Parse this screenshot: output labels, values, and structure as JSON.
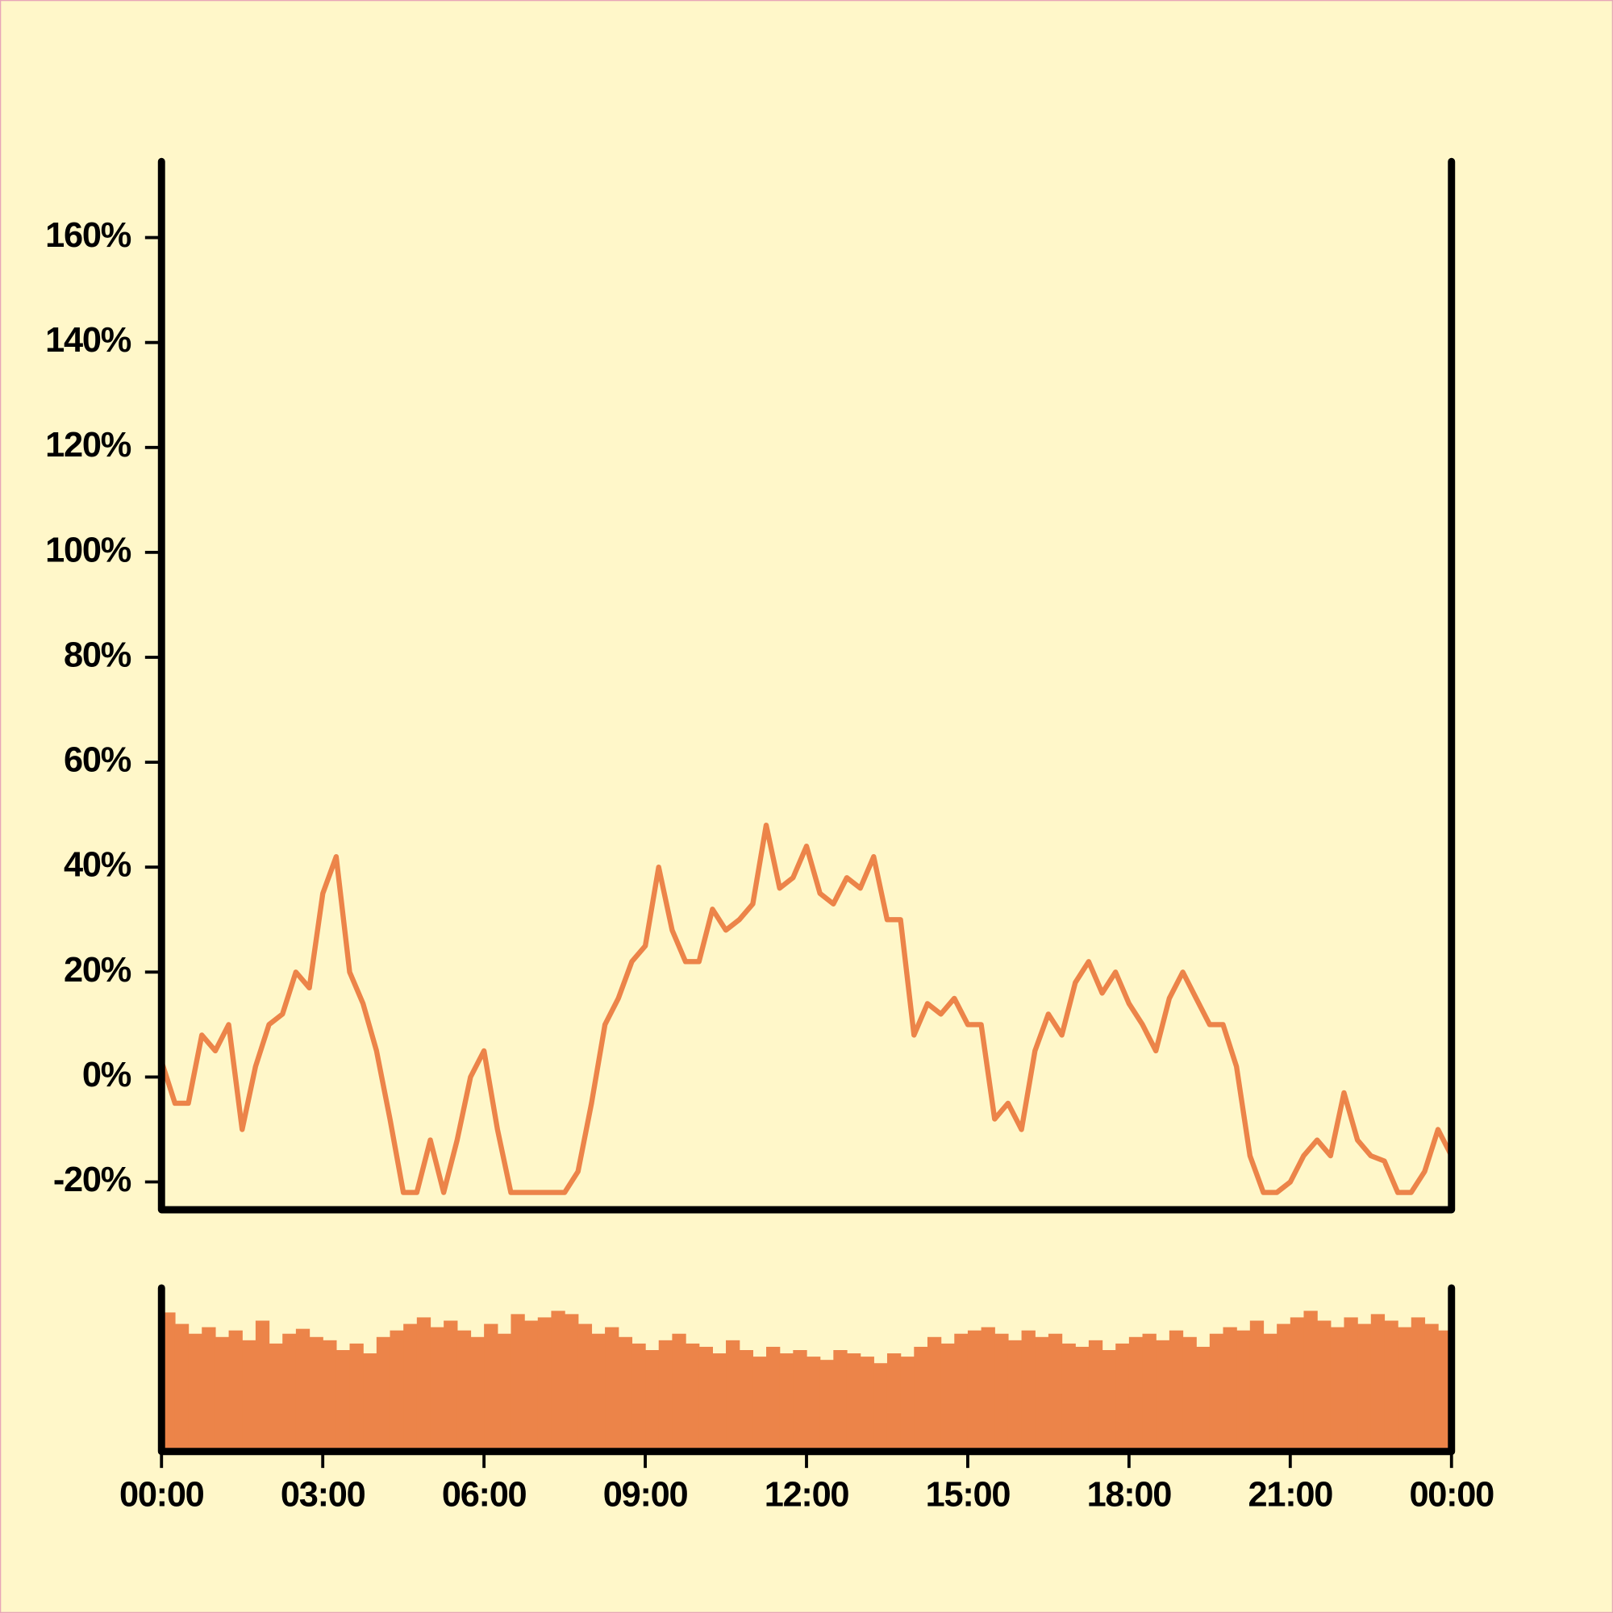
{
  "chart_data": [
    {
      "type": "line",
      "x": [
        0,
        0.25,
        0.5,
        0.75,
        1,
        1.25,
        1.5,
        1.75,
        2,
        2.25,
        2.5,
        2.75,
        3,
        3.25,
        3.5,
        3.75,
        4,
        4.25,
        4.5,
        4.75,
        5,
        5.25,
        5.5,
        5.75,
        6,
        6.25,
        6.5,
        6.75,
        7,
        7.25,
        7.5,
        7.75,
        8,
        8.25,
        8.5,
        8.75,
        9,
        9.25,
        9.5,
        9.75,
        10,
        10.25,
        10.5,
        10.75,
        11,
        11.25,
        11.5,
        11.75,
        12,
        12.25,
        12.5,
        12.75,
        13,
        13.25,
        13.5,
        13.75,
        14,
        14.25,
        14.5,
        14.75,
        15,
        15.25,
        15.5,
        15.75,
        16,
        16.25,
        16.5,
        16.75,
        17,
        17.25,
        17.5,
        17.75,
        18,
        18.25,
        18.5,
        18.75,
        19,
        19.25,
        19.5,
        19.75,
        20,
        20.25,
        20.5,
        20.75,
        21,
        21.25,
        21.5,
        21.75,
        22,
        22.25,
        22.5,
        22.75,
        23,
        23.25,
        23.5,
        23.75,
        24
      ],
      "values": [
        3,
        -5,
        -5,
        8,
        5,
        10,
        -10,
        2,
        10,
        12,
        20,
        17,
        35,
        42,
        20,
        14,
        5,
        -8,
        -22,
        -22,
        -12,
        -22,
        -12,
        0,
        5,
        -10,
        -22,
        -22,
        -22,
        -22,
        -22,
        -18,
        -5,
        10,
        15,
        22,
        25,
        40,
        28,
        22,
        22,
        32,
        28,
        30,
        33,
        48,
        36,
        38,
        44,
        35,
        33,
        38,
        36,
        42,
        30,
        30,
        8,
        14,
        12,
        15,
        10,
        10,
        -8,
        -5,
        -10,
        5,
        12,
        8,
        18,
        22,
        16,
        20,
        14,
        10,
        5,
        15,
        20,
        15,
        10,
        10,
        2,
        -15,
        -22,
        -22,
        -20,
        -15,
        -12,
        -15,
        -3,
        -12,
        -15,
        -16,
        -22,
        -22,
        -18,
        -10,
        -15
      ],
      "color": "#ec8449",
      "xlim": [
        0,
        24
      ],
      "ylim": [
        -25.3,
        174.5
      ],
      "yticks": [
        {
          "value": -20,
          "label": "-20%"
        },
        {
          "value": 0,
          "label": "0%"
        },
        {
          "value": 20,
          "label": "20%"
        },
        {
          "value": 40,
          "label": "40%"
        },
        {
          "value": 60,
          "label": "60%"
        },
        {
          "value": 80,
          "label": "80%"
        },
        {
          "value": 100,
          "label": "100%"
        },
        {
          "value": 120,
          "label": "120%"
        },
        {
          "value": 140,
          "label": "140%"
        },
        {
          "value": 160,
          "label": "160%"
        }
      ]
    },
    {
      "type": "bar",
      "x": [
        0,
        0.25,
        0.5,
        0.75,
        1,
        1.25,
        1.5,
        1.75,
        2,
        2.25,
        2.5,
        2.75,
        3,
        3.25,
        3.5,
        3.75,
        4,
        4.25,
        4.5,
        4.75,
        5,
        5.25,
        5.5,
        5.75,
        6,
        6.25,
        6.5,
        6.75,
        7,
        7.25,
        7.5,
        7.75,
        8,
        8.25,
        8.5,
        8.75,
        9,
        9.25,
        9.5,
        9.75,
        10,
        10.25,
        10.5,
        10.75,
        11,
        11.25,
        11.5,
        11.75,
        12,
        12.25,
        12.5,
        12.75,
        13,
        13.25,
        13.5,
        13.75,
        14,
        14.25,
        14.5,
        14.75,
        15,
        15.25,
        15.5,
        15.75,
        16,
        16.25,
        16.5,
        16.75,
        17,
        17.25,
        17.5,
        17.75,
        18,
        18.25,
        18.5,
        18.75,
        19,
        19.25,
        19.5,
        19.75,
        20,
        20.25,
        20.5,
        20.75,
        21,
        21.25,
        21.5,
        21.75,
        22,
        22.25,
        22.5,
        22.75,
        23,
        23.25,
        23.5,
        23.75
      ],
      "values": [
        85,
        78,
        72,
        76,
        70,
        74,
        68,
        80,
        66,
        72,
        75,
        70,
        68,
        62,
        66,
        60,
        70,
        74,
        78,
        82,
        76,
        80,
        74,
        70,
        78,
        72,
        84,
        80,
        82,
        86,
        84,
        78,
        72,
        76,
        70,
        66,
        62,
        68,
        72,
        66,
        64,
        60,
        68,
        62,
        58,
        64,
        60,
        62,
        58,
        56,
        62,
        60,
        58,
        54,
        60,
        58,
        64,
        70,
        66,
        72,
        74,
        76,
        72,
        68,
        74,
        70,
        72,
        66,
        64,
        68,
        62,
        66,
        70,
        72,
        68,
        74,
        70,
        64,
        72,
        76,
        74,
        80,
        72,
        78,
        82,
        86,
        80,
        76,
        82,
        78,
        84,
        80,
        76,
        82,
        78,
        74
      ],
      "color": "#ec8449",
      "xlim": [
        0,
        24
      ],
      "ylim": [
        0,
        100
      ],
      "xticks": [
        {
          "value": 0,
          "label": "00:00"
        },
        {
          "value": 3,
          "label": "03:00"
        },
        {
          "value": 6,
          "label": "06:00"
        },
        {
          "value": 9,
          "label": "09:00"
        },
        {
          "value": 12,
          "label": "12:00"
        },
        {
          "value": 15,
          "label": "15:00"
        },
        {
          "value": 18,
          "label": "18:00"
        },
        {
          "value": 21,
          "label": "21:00"
        },
        {
          "value": 24,
          "label": "00:00"
        }
      ]
    }
  ]
}
